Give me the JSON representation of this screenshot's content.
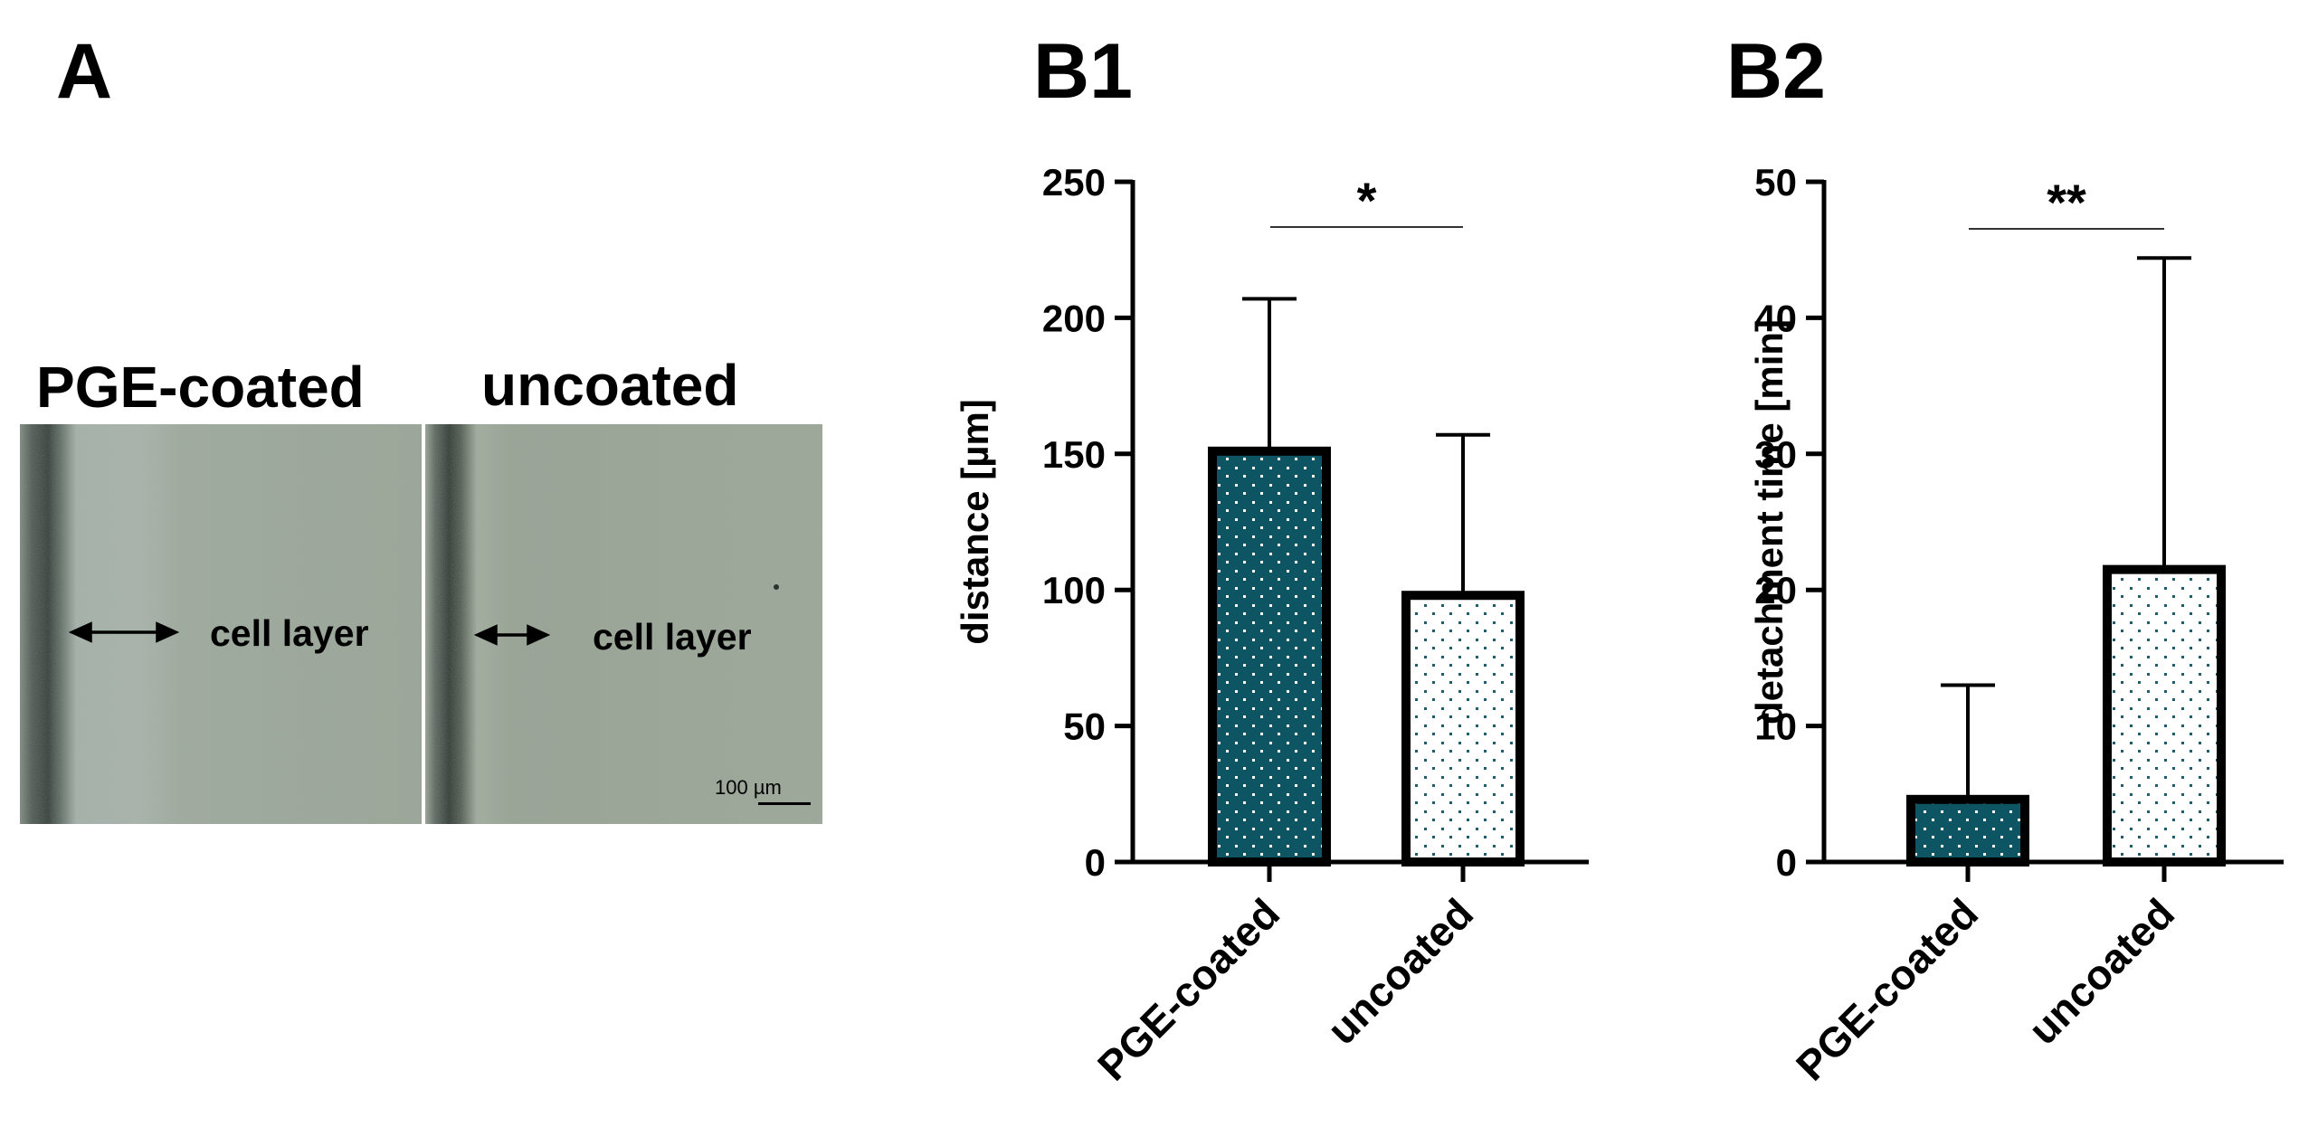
{
  "panels": {
    "a": {
      "letter": "A"
    },
    "b1": {
      "letter": "B1"
    },
    "b2": {
      "letter": "B2"
    }
  },
  "micrographs": {
    "left_label": "PGE-coated",
    "right_label": "uncoated",
    "left_cell_label": "cell layer",
    "right_cell_label": "cell layer",
    "scale_label": "100 µm"
  },
  "colors": {
    "pge_fill": "#0d5563",
    "pge_dots": "#ffffff",
    "uncoated_fill": "#ffffff",
    "uncoated_dots": "#1e5d6b",
    "axis": "#000000",
    "micrograph_base": "#9ea99d"
  },
  "chart_data": [
    {
      "type": "bar",
      "panel": "B1",
      "categories": [
        "PGE-coated",
        "uncoated"
      ],
      "values": [
        151,
        98
      ],
      "error_upper": [
        207,
        157
      ],
      "ylabel": "distance [µm]",
      "ylim": [
        0,
        250
      ],
      "yticks": [
        0,
        50,
        100,
        150,
        200,
        250
      ],
      "significance": {
        "label": "*",
        "between": [
          "PGE-coated",
          "uncoated"
        ]
      }
    },
    {
      "type": "bar",
      "panel": "B2",
      "categories": [
        "PGE-coated",
        "uncoated"
      ],
      "values": [
        4.6,
        21.5
      ],
      "error_upper": [
        13,
        44.4
      ],
      "ylabel": "detachment time [min]",
      "ylim": [
        0,
        50
      ],
      "yticks": [
        0,
        10,
        20,
        30,
        40,
        50
      ],
      "significance": {
        "label": "**",
        "between": [
          "PGE-coated",
          "uncoated"
        ]
      }
    }
  ]
}
